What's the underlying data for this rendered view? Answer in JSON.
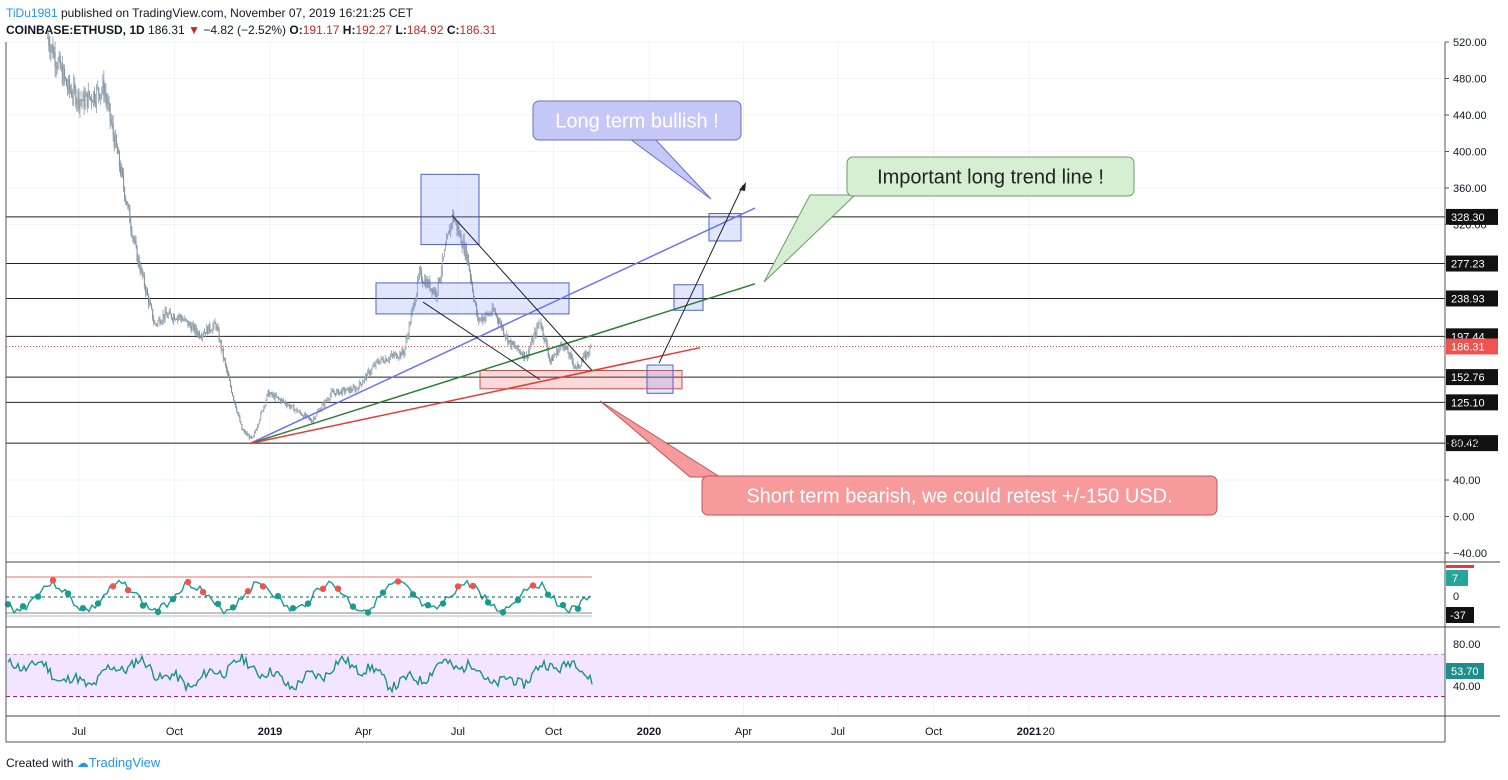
{
  "header": {
    "user": "TiDu1981",
    "published": "published on TradingView.com, November 07, 2019 16:21:25 CET",
    "symbol": "COINBASE:ETHUSD, 1D",
    "last": "186.31",
    "change": "−4.82 (−2.52%)",
    "o_label": "O:",
    "o": "191.17",
    "h_label": "H:",
    "h": "192.27",
    "l_label": "L:",
    "l": "184.92",
    "c_label": "C:",
    "c": "186.31"
  },
  "footer": {
    "created": "Created with",
    "brand": "TradingView"
  },
  "colors": {
    "up": "#26a69a",
    "down": "#ef5350",
    "candle": "#8a9aa8",
    "rsi": "#1c8f8a",
    "rsi_band": "#f3e5ff",
    "osc": "#1a9b8f"
  },
  "chart_data": [
    {
      "type": "candlestick",
      "tick_labels": [
        "520.00",
        "480.00",
        "440.00",
        "400.00",
        "360.00",
        "320.00",
        "80.00",
        "40.00",
        "0.00",
        "−40.00"
      ],
      "ylim": [
        -52,
        540
      ],
      "x_labels": [
        "Jul",
        "Oct",
        "2019",
        "Apr",
        "Jul",
        "Oct",
        "2020",
        "Apr",
        "Jul",
        "Oct",
        "2021",
        "20"
      ],
      "price_path": [
        {
          "date": "2018-06-01",
          "price": 525
        },
        {
          "date": "2018-06-20",
          "price": 470
        },
        {
          "date": "2018-07-05",
          "price": 455
        },
        {
          "date": "2018-07-25",
          "price": 470
        },
        {
          "date": "2018-08-10",
          "price": 380
        },
        {
          "date": "2018-08-25",
          "price": 290
        },
        {
          "date": "2018-09-12",
          "price": 210
        },
        {
          "date": "2018-09-20",
          "price": 220
        },
        {
          "date": "2018-10-05",
          "price": 220
        },
        {
          "date": "2018-10-25",
          "price": 200
        },
        {
          "date": "2018-11-10",
          "price": 210
        },
        {
          "date": "2018-11-20",
          "price": 160
        },
        {
          "date": "2018-12-05",
          "price": 95
        },
        {
          "date": "2018-12-15",
          "price": 84
        },
        {
          "date": "2018-12-30",
          "price": 135
        },
        {
          "date": "2019-01-15",
          "price": 125
        },
        {
          "date": "2019-02-10",
          "price": 105
        },
        {
          "date": "2019-03-01",
          "price": 135
        },
        {
          "date": "2019-03-25",
          "price": 140
        },
        {
          "date": "2019-04-15",
          "price": 170
        },
        {
          "date": "2019-05-10",
          "price": 180
        },
        {
          "date": "2019-05-25",
          "price": 265
        },
        {
          "date": "2019-06-10",
          "price": 245
        },
        {
          "date": "2019-06-26",
          "price": 330
        },
        {
          "date": "2019-07-10",
          "price": 285
        },
        {
          "date": "2019-07-20",
          "price": 215
        },
        {
          "date": "2019-08-05",
          "price": 225
        },
        {
          "date": "2019-08-20",
          "price": 190
        },
        {
          "date": "2019-09-05",
          "price": 175
        },
        {
          "date": "2019-09-18",
          "price": 215
        },
        {
          "date": "2019-09-28",
          "price": 170
        },
        {
          "date": "2019-10-10",
          "price": 190
        },
        {
          "date": "2019-10-23",
          "price": 162
        },
        {
          "date": "2019-11-07",
          "price": 186
        }
      ],
      "level_lines": [
        {
          "value": 328.3,
          "label": "328.30"
        },
        {
          "value": 277.23,
          "label": "277.23"
        },
        {
          "value": 238.93,
          "label": "238.93"
        },
        {
          "value": 197.44,
          "label": "197.44"
        },
        {
          "value": 152.76,
          "label": "152.76"
        },
        {
          "value": 125.1,
          "label": "125.10"
        },
        {
          "value": 80.42,
          "label": "80.42"
        }
      ],
      "last_price": {
        "value": 186.31,
        "label": "186.31"
      },
      "annotations": [
        "Long term bullish !",
        "Important long trend line !",
        "Short term bearish, we could retest +/-150 USD."
      ]
    },
    {
      "type": "line",
      "name": "oscillator",
      "tick_labels": [
        "0"
      ],
      "value_labels": [
        "7",
        "-37"
      ],
      "ylim": [
        -50,
        50
      ]
    },
    {
      "type": "line",
      "name": "RSI",
      "tick_labels": [
        "80.00",
        "40.00"
      ],
      "last_value": "53.70",
      "band": [
        30,
        70
      ],
      "ylim": [
        10,
        90
      ]
    }
  ]
}
